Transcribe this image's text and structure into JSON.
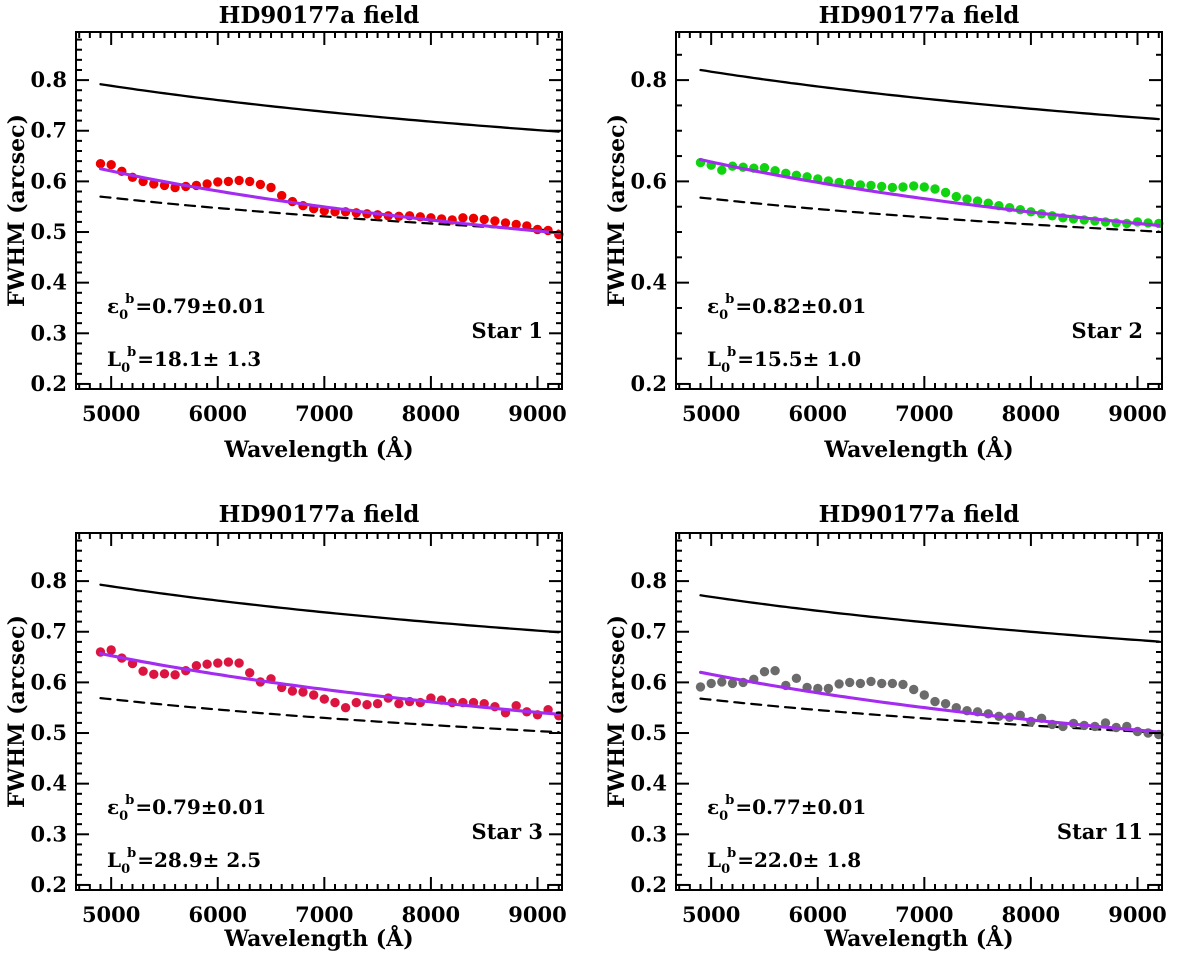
{
  "figure": {
    "background": "#ffffff"
  },
  "shared": {
    "xlabel": "Wavelength (Å)",
    "ylabel": "FWHM (arcsec)",
    "x_tick_labels": [
      "5000",
      "6000",
      "7000",
      "8000",
      "9000"
    ],
    "xlim": [
      4670,
      9230
    ],
    "ylim": [
      0.19,
      0.895
    ],
    "x_minor_step": 100,
    "fit_color": "#a32cf0",
    "curve_color": "#000000",
    "wavelengths": [
      4900,
      5000,
      5100,
      5200,
      5300,
      5400,
      5500,
      5600,
      5700,
      5800,
      5900,
      6000,
      6100,
      6200,
      6300,
      6400,
      6500,
      6600,
      6700,
      6800,
      6900,
      7000,
      7100,
      7200,
      7300,
      7400,
      7500,
      7600,
      7700,
      7800,
      7900,
      8000,
      8100,
      8200,
      8300,
      8400,
      8500,
      8600,
      8700,
      8800,
      8900,
      9000,
      9100,
      9200
    ]
  },
  "chart_data": [
    {
      "type": "scatter",
      "title": "HD90177a field",
      "star": "Star 1",
      "epsilon": {
        "base": "ε",
        "sub": "0",
        "sup": "b",
        "rest": "=0.79±0.01"
      },
      "l0": {
        "base": "L",
        "sub": "0",
        "sup": "b",
        "rest": "=18.1± 1.3"
      },
      "dot_color": "#ee0000",
      "y_major_ticks": [
        "0.2",
        "0.3",
        "0.4",
        "0.5",
        "0.6",
        "0.7",
        "0.8"
      ],
      "y_major_step": 0.1,
      "y_minor_step": 0.02,
      "fwhm": [
        0.635,
        0.633,
        0.62,
        0.608,
        0.6,
        0.595,
        0.592,
        0.588,
        0.59,
        0.592,
        0.595,
        0.599,
        0.6,
        0.602,
        0.6,
        0.594,
        0.588,
        0.572,
        0.56,
        0.552,
        0.546,
        0.542,
        0.54,
        0.54,
        0.538,
        0.536,
        0.534,
        0.532,
        0.531,
        0.532,
        0.53,
        0.528,
        0.526,
        0.524,
        0.528,
        0.527,
        0.525,
        0.522,
        0.518,
        0.515,
        0.512,
        0.505,
        0.503,
        0.495
      ],
      "solid_curve": {
        "start": 0.792,
        "exponent": -0.2
      },
      "dashed_curve": {
        "start": 0.57,
        "exponent": -0.2
      },
      "fit": {
        "start": 0.625,
        "end": 0.498
      }
    },
    {
      "type": "scatter",
      "title": "HD90177a field",
      "star": "Star 2",
      "epsilon": {
        "base": "ε",
        "sub": "0",
        "sup": "b",
        "rest": "=0.82±0.01"
      },
      "l0": {
        "base": "L",
        "sub": "0",
        "sup": "b",
        "rest": "=15.5± 1.0"
      },
      "dot_color": "#0fd40f",
      "y_major_ticks": [
        "0.2",
        "0.4",
        "0.6",
        "0.8"
      ],
      "y_major_step": 0.2,
      "y_minor_step": 0.05,
      "fwhm": [
        0.637,
        0.632,
        0.622,
        0.63,
        0.628,
        0.626,
        0.627,
        0.621,
        0.616,
        0.612,
        0.609,
        0.605,
        0.601,
        0.598,
        0.596,
        0.593,
        0.592,
        0.59,
        0.588,
        0.589,
        0.591,
        0.589,
        0.585,
        0.578,
        0.57,
        0.565,
        0.561,
        0.557,
        0.552,
        0.548,
        0.544,
        0.54,
        0.536,
        0.532,
        0.528,
        0.526,
        0.524,
        0.522,
        0.52,
        0.518,
        0.517,
        0.52,
        0.518,
        0.517
      ],
      "solid_curve": {
        "start": 0.82,
        "exponent": -0.2
      },
      "dashed_curve": {
        "start": 0.568,
        "exponent": -0.2
      },
      "fit": {
        "start": 0.643,
        "end": 0.513
      }
    },
    {
      "type": "scatter",
      "title": "HD90177a field",
      "star": "Star 3",
      "epsilon": {
        "base": "ε",
        "sub": "0",
        "sup": "b",
        "rest": "=0.79±0.01"
      },
      "l0": {
        "base": "L",
        "sub": "0",
        "sup": "b",
        "rest": "=28.9± 2.5"
      },
      "dot_color": "#dc1440",
      "y_major_ticks": [
        "0.2",
        "0.3",
        "0.4",
        "0.5",
        "0.6",
        "0.7",
        "0.8"
      ],
      "y_major_step": 0.1,
      "y_minor_step": 0.02,
      "fwhm": [
        0.66,
        0.664,
        0.648,
        0.637,
        0.622,
        0.616,
        0.617,
        0.615,
        0.623,
        0.633,
        0.636,
        0.638,
        0.64,
        0.638,
        0.619,
        0.601,
        0.607,
        0.59,
        0.583,
        0.581,
        0.575,
        0.567,
        0.56,
        0.55,
        0.56,
        0.556,
        0.558,
        0.569,
        0.558,
        0.562,
        0.56,
        0.569,
        0.565,
        0.56,
        0.56,
        0.56,
        0.558,
        0.552,
        0.54,
        0.554,
        0.542,
        0.536,
        0.546,
        0.534
      ],
      "solid_curve": {
        "start": 0.793,
        "exponent": -0.2
      },
      "dashed_curve": {
        "start": 0.569,
        "exponent": -0.2
      },
      "fit": {
        "start": 0.657,
        "end": 0.537
      }
    },
    {
      "type": "scatter",
      "title": "HD90177a field",
      "star": "Star 11",
      "epsilon": {
        "base": "ε",
        "sub": "0",
        "sup": "b",
        "rest": "=0.77±0.01"
      },
      "l0": {
        "base": "L",
        "sub": "0",
        "sup": "b",
        "rest": "=22.0± 1.8"
      },
      "dot_color": "#6b6b6b",
      "y_major_ticks": [
        "0.2",
        "0.3",
        "0.4",
        "0.5",
        "0.6",
        "0.7",
        "0.8"
      ],
      "y_major_step": 0.1,
      "y_minor_step": 0.02,
      "fwhm": [
        0.591,
        0.598,
        0.601,
        0.598,
        0.6,
        0.606,
        0.621,
        0.623,
        0.594,
        0.608,
        0.59,
        0.588,
        0.588,
        0.597,
        0.6,
        0.598,
        0.602,
        0.598,
        0.598,
        0.596,
        0.586,
        0.575,
        0.562,
        0.558,
        0.55,
        0.544,
        0.542,
        0.538,
        0.533,
        0.531,
        0.535,
        0.523,
        0.529,
        0.517,
        0.513,
        0.519,
        0.515,
        0.513,
        0.52,
        0.511,
        0.513,
        0.503,
        0.5,
        0.497
      ],
      "solid_curve": {
        "start": 0.772,
        "exponent": -0.2
      },
      "dashed_curve": {
        "start": 0.568,
        "exponent": -0.2
      },
      "fit": {
        "start": 0.62,
        "end": 0.502
      }
    }
  ]
}
